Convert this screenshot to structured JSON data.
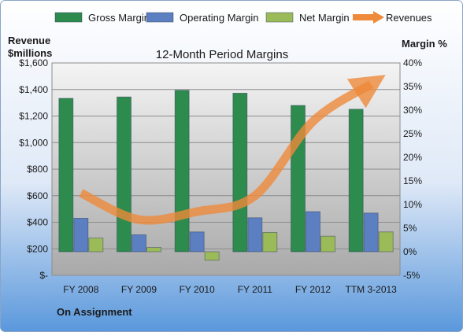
{
  "chart_data": {
    "type": "bar",
    "title": "12-Month Period Margins",
    "left_axis_title": [
      "Revenue",
      "$millions"
    ],
    "right_axis_title": "Margin %",
    "footer_label": "On Assignment",
    "categories": [
      "FY 2008",
      "FY 2009",
      "FY 2010",
      "FY 2011",
      "FY 2012",
      "TTM 3-2013"
    ],
    "left_axis": {
      "min": 0,
      "max": 1600,
      "step": 200,
      "tick_labels": [
        "$-",
        "$200",
        "$400",
        "$600",
        "$800",
        "$1,000",
        "$1,200",
        "$1,400",
        "$1,600"
      ]
    },
    "right_axis": {
      "min": -5,
      "max": 40,
      "step": 5,
      "tick_labels": [
        "-5%",
        "0%",
        "5%",
        "10%",
        "15%",
        "20%",
        "25%",
        "30%",
        "35%",
        "40%"
      ]
    },
    "series": [
      {
        "name": "Gross Margin",
        "axis": "right",
        "kind": "bar",
        "color": "#2e8b4e",
        "values": [
          32.5,
          32.8,
          34.2,
          33.6,
          31.0,
          30.2
        ]
      },
      {
        "name": "Operating Margin",
        "axis": "right",
        "kind": "bar",
        "color": "#5b7fc0",
        "values": [
          7.1,
          3.6,
          4.2,
          7.2,
          8.5,
          8.2
        ]
      },
      {
        "name": "Net Margin",
        "axis": "right",
        "kind": "bar",
        "color": "#9bbb59",
        "values": [
          2.9,
          0.9,
          -1.8,
          4.1,
          3.3,
          4.2
        ]
      },
      {
        "name": "Revenues",
        "axis": "left",
        "kind": "line",
        "color": "#ee8a3a",
        "values": [
          620,
          420,
          480,
          600,
          1160,
          1440
        ]
      }
    ],
    "grid": true,
    "legend_position": "top"
  }
}
